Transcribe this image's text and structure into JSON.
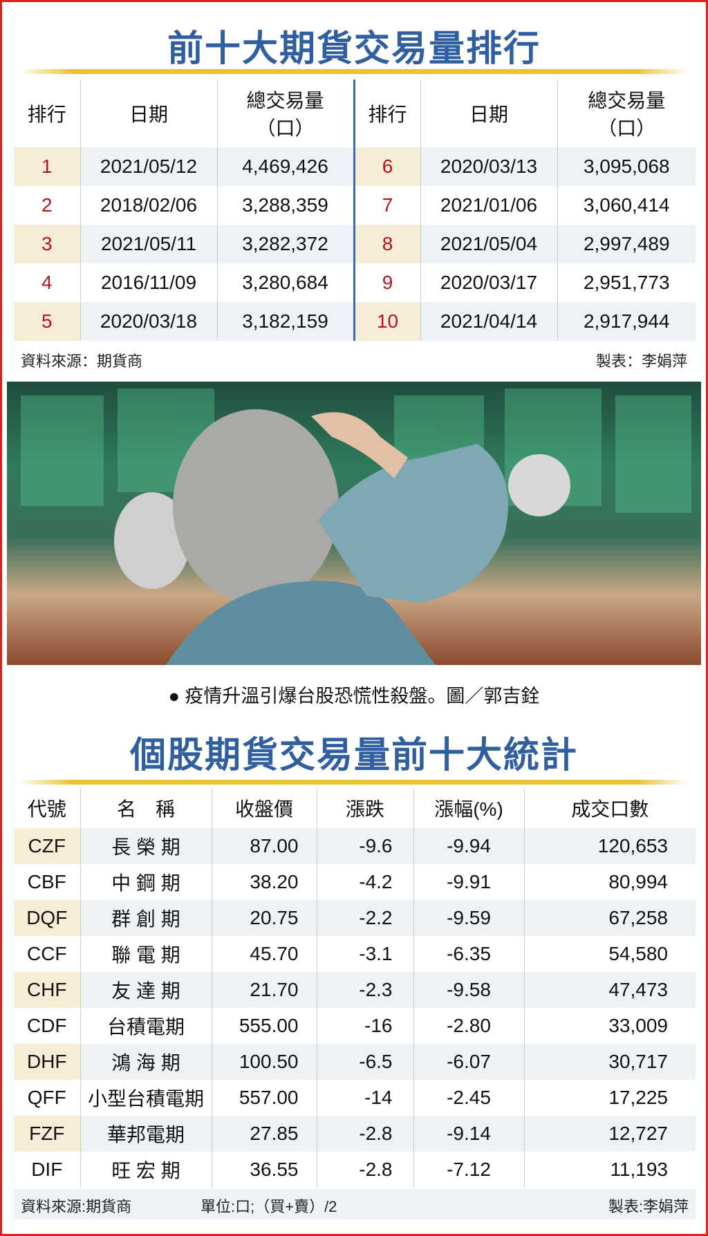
{
  "table1": {
    "title": "前十大期貨交易量排行",
    "headers": [
      "排行",
      "日期",
      "總交易量",
      "（口）"
    ],
    "rows": [
      {
        "rank": "1",
        "date": "2021/05/12",
        "volume": "4,469,426"
      },
      {
        "rank": "2",
        "date": "2018/02/06",
        "volume": "3,288,359"
      },
      {
        "rank": "3",
        "date": "2021/05/11",
        "volume": "3,282,372"
      },
      {
        "rank": "4",
        "date": "2016/11/09",
        "volume": "3,280,684"
      },
      {
        "rank": "5",
        "date": "2020/03/18",
        "volume": "3,182,159"
      },
      {
        "rank": "6",
        "date": "2020/03/13",
        "volume": "3,095,068"
      },
      {
        "rank": "7",
        "date": "2021/01/06",
        "volume": "3,060,414"
      },
      {
        "rank": "8",
        "date": "2021/05/04",
        "volume": "2,997,489"
      },
      {
        "rank": "9",
        "date": "2020/03/17",
        "volume": "2,951,773"
      },
      {
        "rank": "10",
        "date": "2021/04/14",
        "volume": "2,917,944"
      }
    ],
    "source": "資料來源：期貨商",
    "author": "製表：李娟萍"
  },
  "photo": {
    "caption": "● 疫情升溫引爆台股恐慌性殺盤。圖／郭吉銓"
  },
  "table2": {
    "title": "個股期貨交易量前十大統計",
    "headers": [
      "代號",
      "名　稱",
      "收盤價",
      "漲跌",
      "漲幅(%)",
      "成交口數"
    ],
    "rows": [
      [
        "CZF",
        "長 榮 期",
        "87.00",
        "-9.6",
        "-9.94",
        "120,653"
      ],
      [
        "CBF",
        "中 鋼 期",
        "38.20",
        "-4.2",
        "-9.91",
        "80,994"
      ],
      [
        "DQF",
        "群 創 期",
        "20.75",
        "-2.2",
        "-9.59",
        "67,258"
      ],
      [
        "CCF",
        "聯 電 期",
        "45.70",
        "-3.1",
        "-6.35",
        "54,580"
      ],
      [
        "CHF",
        "友 達 期",
        "21.70",
        "-2.3",
        "-9.58",
        "47,473"
      ],
      [
        "CDF",
        "台積電期",
        "555.00",
        "-16",
        "-2.80",
        "33,009"
      ],
      [
        "DHF",
        "鴻 海 期",
        "100.50",
        "-6.5",
        "-6.07",
        "30,717"
      ],
      [
        "QFF",
        "小型台積電期",
        "557.00",
        "-14",
        "-2.45",
        "17,225"
      ],
      [
        "FZF",
        "華邦電期",
        "27.85",
        "-2.8",
        "-9.14",
        "12,727"
      ],
      [
        "DIF",
        "旺 宏 期",
        "36.55",
        "-2.8",
        "-7.12",
        "11,193"
      ]
    ],
    "source": "資料來源:期貨商",
    "unit": "單位:口;（買+賣）/2",
    "author": "製表:李娟萍"
  }
}
